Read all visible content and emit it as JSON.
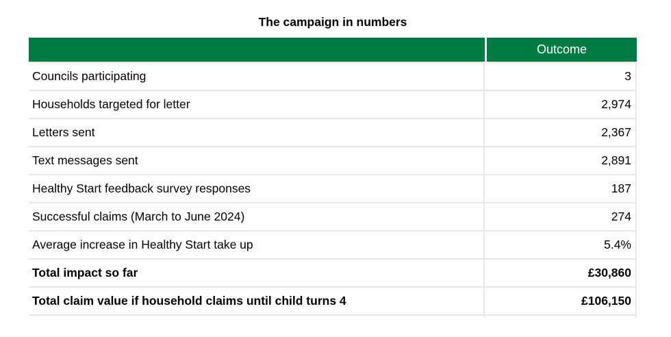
{
  "title": "The campaign in numbers",
  "colors": {
    "header_bg": "#007b43",
    "header_text": "#ffffff",
    "border": "#e8e8e8",
    "text": "#000000"
  },
  "table": {
    "header": {
      "outcome_label": "Outcome"
    },
    "rows": [
      {
        "label": "Councils participating",
        "value": "3",
        "bold": false
      },
      {
        "label": "Households targeted for letter",
        "value": "2,974",
        "bold": false
      },
      {
        "label": "Letters sent",
        "value": "2,367",
        "bold": false
      },
      {
        "label": "Text messages sent",
        "value": "2,891",
        "bold": false
      },
      {
        "label": "Healthy Start feedback survey responses",
        "value": "187",
        "bold": false
      },
      {
        "label": "Successful claims (March to June 2024)",
        "value": "274",
        "bold": false
      },
      {
        "label": "Average increase in Healthy Start take up",
        "value": "5.4%",
        "bold": false
      },
      {
        "label": "Total impact so far",
        "value": "£30,860",
        "bold": true
      },
      {
        "label": "Total claim value if household claims until child turns 4",
        "value": "£106,150",
        "bold": true
      }
    ]
  }
}
